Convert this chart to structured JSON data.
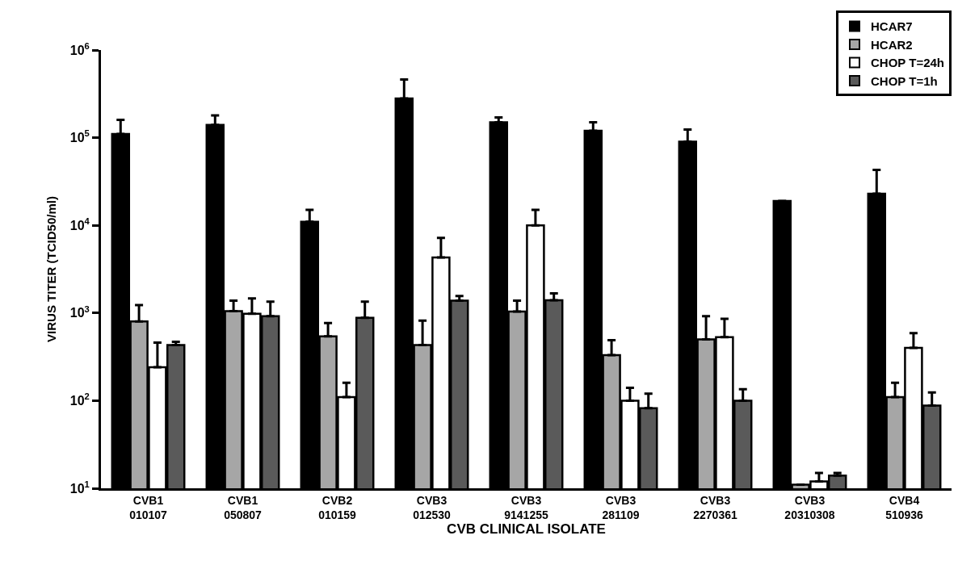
{
  "chart_data": {
    "type": "bar",
    "xlabel": "CVB CLINICAL ISOLATE",
    "ylabel": "VIRUS TITER (TCID50/ml)",
    "categories": [
      "CVB1\n010107",
      "CVB1\n050807",
      "CVB2\n010159",
      "CVB3\n012530",
      "CVB3\n9141255",
      "CVB3\n281109",
      "CVB3\n2270361",
      "CVB3\n20310308",
      "CVB4\n510936"
    ],
    "series": [
      {
        "name": "HCAR7",
        "color": "#000000",
        "values": [
          110000,
          140000,
          11000,
          280000,
          150000,
          120000,
          90000,
          19000,
          23000
        ],
        "errors": [
          [
            110000,
            160000
          ],
          [
            140000,
            180000
          ],
          [
            11000,
            15000
          ],
          [
            280000,
            460000
          ],
          [
            150000,
            170000
          ],
          [
            120000,
            150000
          ],
          [
            90000,
            124000
          ],
          null,
          [
            23000,
            43000
          ]
        ]
      },
      {
        "name": "HCAR2",
        "color": "#a6a6a6",
        "values": [
          800,
          1050,
          540,
          430,
          1040,
          330,
          500,
          11,
          110
        ],
        "errors": [
          [
            800,
            1230
          ],
          [
            1050,
            1380
          ],
          [
            540,
            770
          ],
          [
            430,
            820
          ],
          [
            1040,
            1380
          ],
          [
            330,
            490
          ],
          [
            500,
            920
          ],
          null,
          [
            110,
            160
          ]
        ]
      },
      {
        "name": "CHOP T=24h",
        "color": "#ffffff",
        "values": [
          240,
          980,
          110,
          4300,
          10000,
          100,
          530,
          12,
          400
        ],
        "errors": [
          [
            240,
            460
          ],
          [
            980,
            1470
          ],
          [
            110,
            160
          ],
          [
            4300,
            7200
          ],
          [
            10000,
            15000
          ],
          [
            100,
            140
          ],
          [
            530,
            860
          ],
          [
            12,
            15
          ],
          [
            400,
            590
          ]
        ]
      },
      {
        "name": "CHOP T=1h",
        "color": "#5a5a5a",
        "values": [
          430,
          920,
          880,
          1380,
          1400,
          82,
          100,
          14,
          88
        ],
        "errors": [
          [
            430,
            470
          ],
          [
            920,
            1350
          ],
          [
            880,
            1350
          ],
          [
            1380,
            1560
          ],
          [
            1400,
            1670
          ],
          [
            82,
            120
          ],
          [
            100,
            135
          ],
          [
            14,
            15
          ],
          [
            88,
            124
          ]
        ]
      }
    ],
    "log": true,
    "ylim": [
      10,
      1000000
    ],
    "yticks": [
      {
        "value": 10,
        "label": "10$^{1}$"
      },
      {
        "value": 100,
        "label": "10$^{2}$"
      },
      {
        "value": 1000,
        "label": "10$^{3}$"
      },
      {
        "value": 10000,
        "label": "10$^{4}$"
      },
      {
        "value": 100000,
        "label": "10$^{5}$"
      },
      {
        "value": 1000000,
        "label": "10$^{6}$"
      }
    ],
    "legend": "top right"
  }
}
